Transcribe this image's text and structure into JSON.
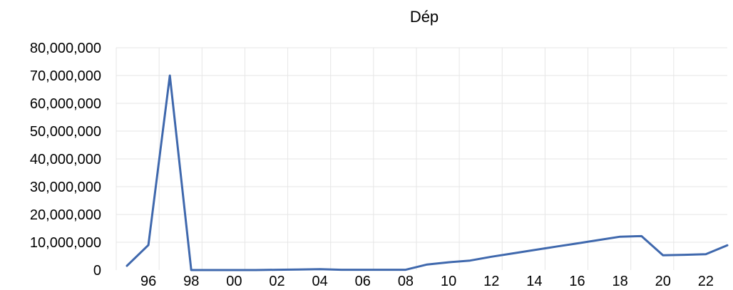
{
  "chart_data": {
    "type": "line",
    "title": "Dép",
    "xlabel": "",
    "ylabel": "",
    "x": [
      1995,
      1996,
      1997,
      1998,
      1999,
      2000,
      2001,
      2002,
      2003,
      2004,
      2005,
      2006,
      2007,
      2008,
      2009,
      2010,
      2011,
      2012,
      2013,
      2014,
      2015,
      2016,
      2017,
      2018,
      2019,
      2020,
      2021,
      2022,
      2023
    ],
    "x_tick_labels": [
      "96",
      "98",
      "00",
      "02",
      "04",
      "06",
      "08",
      "10",
      "12",
      "14",
      "16",
      "18",
      "20",
      "22"
    ],
    "x_tick_values": [
      1996,
      1998,
      2000,
      2002,
      2004,
      2006,
      2008,
      2010,
      2012,
      2014,
      2016,
      2018,
      2020,
      2022
    ],
    "y_tick_labels": [
      "0",
      "10,000,000",
      "20,000,000",
      "30,000,000",
      "40,000,000",
      "50,000,000",
      "60,000,000",
      "70,000,000",
      "80,000,000"
    ],
    "y_tick_values": [
      0,
      10000000,
      20000000,
      30000000,
      40000000,
      50000000,
      60000000,
      70000000,
      80000000
    ],
    "ylim": [
      0,
      80000000
    ],
    "grid": true,
    "legend": "none",
    "series": [
      {
        "color": "#3f68ad",
        "values": [
          1500000,
          9000000,
          70000000,
          0,
          0,
          0,
          0,
          100000,
          200000,
          300000,
          100000,
          100000,
          100000,
          100000,
          2000000,
          2800000,
          3400000,
          4800000,
          6000000,
          7200000,
          8400000,
          9600000,
          10800000,
          12000000,
          12200000,
          5300000,
          5500000,
          5700000,
          8900000
        ]
      }
    ]
  }
}
